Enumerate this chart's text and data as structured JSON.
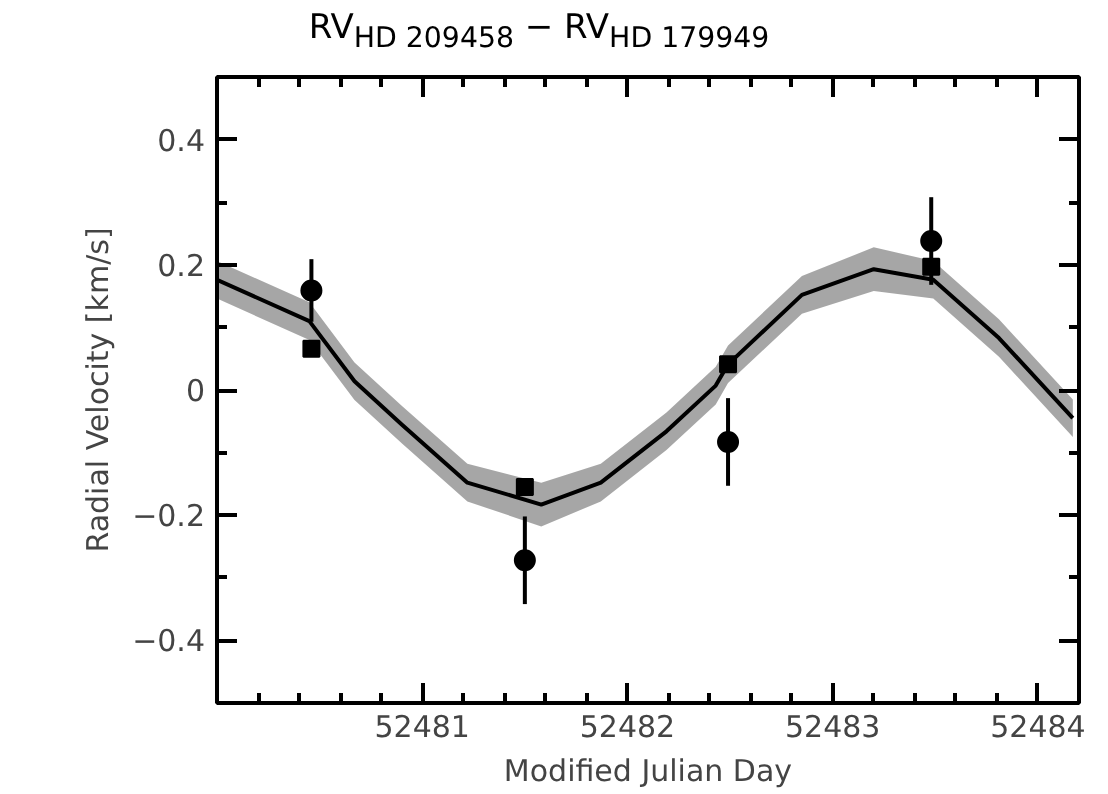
{
  "chart_data": {
    "type": "scatter",
    "title": "RV$_{HD 209458}$ − RV$_{HD 179949}$",
    "xlabel": "Modified Julian Day",
    "ylabel": "Radial Velocity [km/s]",
    "xlim": [
      52480.0,
      52484.2
    ],
    "ylim": [
      -0.5,
      0.5
    ],
    "xticks": [
      {
        "value": 52480.2,
        "label": null
      },
      {
        "value": 52480.4,
        "label": null
      },
      {
        "value": 52480.6,
        "label": null
      },
      {
        "value": 52480.8,
        "label": null
      },
      52481,
      {
        "value": 52481.2,
        "label": null
      },
      {
        "value": 52481.4,
        "label": null
      },
      {
        "value": 52481.6,
        "label": null
      },
      {
        "value": 52481.8,
        "label": null
      },
      52482,
      {
        "value": 52482.2,
        "label": null
      },
      {
        "value": 52482.4,
        "label": null
      },
      {
        "value": 52482.6,
        "label": null
      },
      {
        "value": 52482.8,
        "label": null
      },
      52483,
      {
        "value": 52483.2,
        "label": null
      },
      {
        "value": 52483.4,
        "label": null
      },
      {
        "value": 52483.6,
        "label": null
      },
      {
        "value": 52483.8,
        "label": null
      },
      52484
    ],
    "yticks": [
      {
        "value": -0.5,
        "label": null
      },
      {
        "value": -0.4,
        "label": "−0.4"
      },
      {
        "value": -0.3,
        "label": null
      },
      {
        "value": -0.2,
        "label": "−0.2"
      },
      {
        "value": -0.1,
        "label": null
      },
      0,
      {
        "value": 0.1,
        "label": null
      },
      0.2,
      {
        "value": 0.3,
        "label": null
      },
      0.4,
      {
        "value": 0.5,
        "label": null
      }
    ],
    "grid": false,
    "series": [
      {
        "type": "line",
        "color": "#000000",
        "x": [
          52480.0,
          52480.45,
          52480.67,
          52480.9,
          52481.22,
          52481.58,
          52481.87,
          52482.19,
          52482.43,
          52482.49,
          52482.85,
          52483.2,
          52483.49,
          52483.81,
          52484.17
        ],
        "values": [
          0.176,
          0.11,
          0.014,
          -0.055,
          -0.148,
          -0.183,
          -0.148,
          -0.066,
          0.007,
          0.041,
          0.152,
          0.193,
          0.176,
          0.083,
          -0.045
        ],
        "lower": [
          0.146,
          0.08,
          -0.016,
          -0.085,
          -0.178,
          -0.218,
          -0.178,
          -0.096,
          -0.023,
          0.011,
          0.122,
          0.158,
          0.146,
          0.053,
          -0.075
        ],
        "upper": [
          0.206,
          0.14,
          0.044,
          -0.025,
          -0.118,
          -0.148,
          -0.118,
          -0.036,
          0.037,
          0.071,
          0.182,
          0.228,
          0.206,
          0.113,
          -0.015
        ]
      },
      {
        "color": "#000000",
        "marker": "circle",
        "x": [
          52480.46,
          52481.5,
          52482.49,
          52483.48
        ],
        "values": [
          0.159,
          -0.272,
          -0.083,
          0.238
        ],
        "errors": [
          0.05,
          0.07,
          0.07,
          0.07
        ]
      },
      {
        "color": "#000000",
        "marker": "square",
        "x": [
          52480.46,
          52481.5,
          52482.49,
          52483.48
        ],
        "values": [
          0.066,
          -0.155,
          0.041,
          0.197
        ]
      }
    ]
  }
}
